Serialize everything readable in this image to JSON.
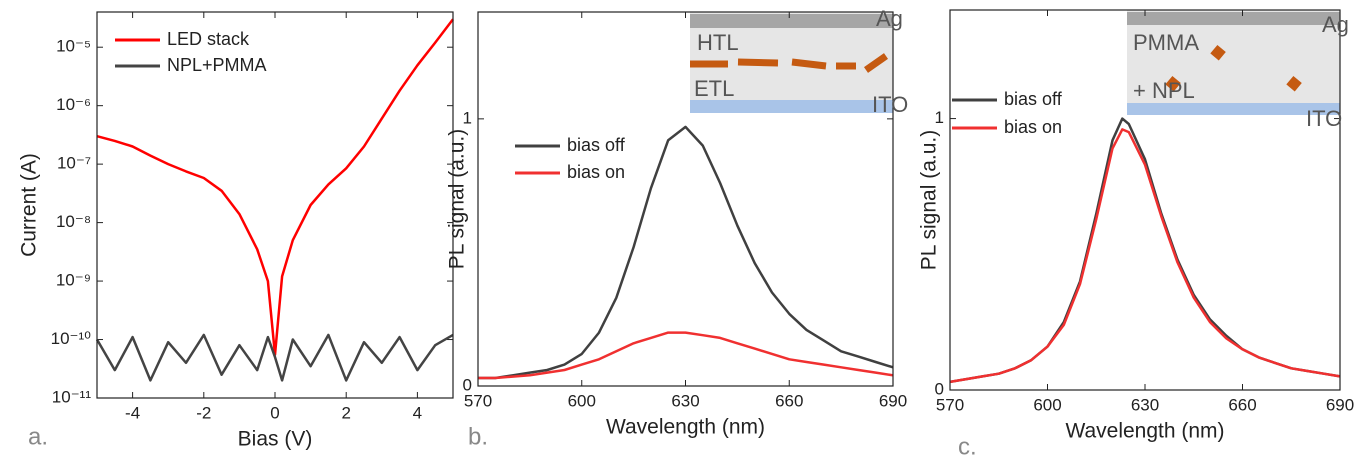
{
  "chart_data": [
    {
      "type": "line",
      "panel_label": "a.",
      "x_label": "Bias (V)",
      "y_label": "Current (A)",
      "log_y": true,
      "xlim": [
        -5,
        5
      ],
      "xticks": [
        -4,
        -2,
        0,
        2,
        4
      ],
      "ylim": [
        1e-11,
        4e-05
      ],
      "yticks": [
        {
          "value": 1e-11,
          "label": "10⁻¹¹"
        },
        {
          "value": 1e-10,
          "label": "10⁻¹⁰"
        },
        {
          "value": 1e-09,
          "label": "10⁻⁹"
        },
        {
          "value": 1e-08,
          "label": "10⁻⁸"
        },
        {
          "value": 1e-07,
          "label": "10⁻⁷"
        },
        {
          "value": 1e-06,
          "label": "10⁻⁶"
        },
        {
          "value": 1e-05,
          "label": "10⁻⁵"
        }
      ],
      "x": [
        -5,
        -4.5,
        -4,
        -3.5,
        -3,
        -2.5,
        -2,
        -1.5,
        -1,
        -0.5,
        -0.2,
        0,
        0.2,
        0.5,
        1,
        1.5,
        2,
        2.5,
        3,
        3.5,
        4,
        4.5,
        5
      ],
      "series": [
        {
          "name": "LED stack",
          "color": "#ff0000",
          "values": [
            3e-07,
            2.5e-07,
            2e-07,
            1.4e-07,
            1e-07,
            7.5e-08,
            5.8e-08,
            3.5e-08,
            1.4e-08,
            3.5e-09,
            1e-09,
            5.5e-11,
            1.2e-09,
            5e-09,
            2e-08,
            4.5e-08,
            8.5e-08,
            2e-07,
            6e-07,
            1.8e-06,
            4.9e-06,
            1.2e-05,
            3e-05
          ]
        },
        {
          "name": "NPL+PMMA",
          "color": "#444444",
          "values": [
            1e-10,
            3e-11,
            1.1e-10,
            2e-11,
            9e-11,
            4e-11,
            1.2e-10,
            2.5e-11,
            8e-11,
            3e-11,
            1.1e-10,
            5e-11,
            2e-11,
            1e-10,
            3.5e-11,
            1.2e-10,
            2e-11,
            9e-11,
            4e-11,
            1.1e-10,
            3e-11,
            8e-11,
            1.2e-10
          ]
        }
      ]
    },
    {
      "type": "line",
      "panel_label": "b.",
      "x_label": "Wavelength (nm)",
      "y_label": "PL signal (a.u.)",
      "xlim": [
        570,
        690
      ],
      "xticks": [
        570,
        600,
        630,
        660,
        690
      ],
      "ylim": [
        0,
        1.4
      ],
      "yticks": [
        0,
        1
      ],
      "annotations": [
        "Ag",
        "HTL",
        "ETL",
        "ITO"
      ],
      "x": [
        570,
        575,
        580,
        585,
        590,
        595,
        600,
        605,
        610,
        615,
        620,
        625,
        630,
        635,
        640,
        645,
        650,
        655,
        660,
        665,
        670,
        675,
        680,
        685,
        690
      ],
      "series": [
        {
          "name": "bias off",
          "color": "#404040",
          "values": [
            0.03,
            0.03,
            0.04,
            0.05,
            0.06,
            0.08,
            0.12,
            0.2,
            0.33,
            0.52,
            0.74,
            0.92,
            0.97,
            0.9,
            0.76,
            0.6,
            0.46,
            0.35,
            0.27,
            0.21,
            0.17,
            0.13,
            0.11,
            0.09,
            0.07
          ]
        },
        {
          "name": "bias on",
          "color": "#f03030",
          "values": [
            0.03,
            0.03,
            0.035,
            0.04,
            0.05,
            0.06,
            0.08,
            0.1,
            0.13,
            0.16,
            0.18,
            0.2,
            0.2,
            0.19,
            0.18,
            0.16,
            0.14,
            0.12,
            0.1,
            0.09,
            0.08,
            0.07,
            0.06,
            0.05,
            0.04
          ]
        }
      ]
    },
    {
      "type": "line",
      "panel_label": "c.",
      "x_label": "Wavelength (nm)",
      "y_label": "PL signal (a.u.)",
      "xlim": [
        570,
        690
      ],
      "xticks": [
        570,
        600,
        630,
        660,
        690
      ],
      "ylim": [
        0,
        1.4
      ],
      "yticks": [
        0,
        1
      ],
      "annotations": [
        "Ag",
        "PMMA",
        "+ NPL",
        "ITO"
      ],
      "x": [
        570,
        575,
        580,
        585,
        590,
        595,
        600,
        605,
        610,
        615,
        620,
        623,
        625,
        630,
        635,
        640,
        645,
        650,
        655,
        660,
        665,
        670,
        675,
        680,
        685,
        690
      ],
      "series": [
        {
          "name": "bias off",
          "color": "#404040",
          "values": [
            0.03,
            0.04,
            0.05,
            0.06,
            0.08,
            0.11,
            0.16,
            0.25,
            0.4,
            0.65,
            0.92,
            1.0,
            0.98,
            0.85,
            0.65,
            0.48,
            0.35,
            0.26,
            0.2,
            0.15,
            0.12,
            0.1,
            0.08,
            0.07,
            0.06,
            0.05
          ]
        },
        {
          "name": "bias on",
          "color": "#f03030",
          "values": [
            0.03,
            0.04,
            0.05,
            0.06,
            0.08,
            0.11,
            0.16,
            0.24,
            0.39,
            0.63,
            0.89,
            0.96,
            0.95,
            0.83,
            0.64,
            0.47,
            0.34,
            0.25,
            0.19,
            0.15,
            0.12,
            0.1,
            0.08,
            0.07,
            0.06,
            0.05
          ]
        }
      ]
    }
  ]
}
